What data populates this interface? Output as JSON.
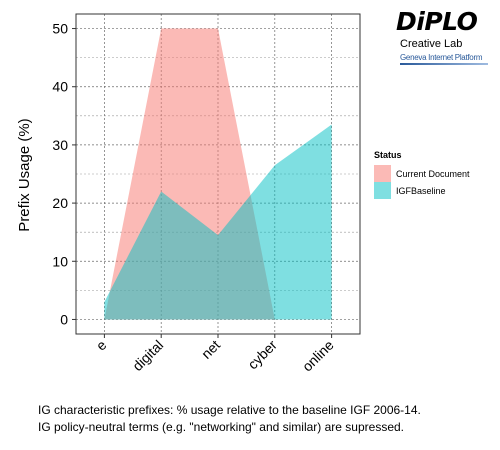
{
  "logo": {
    "brand": "DiPLO",
    "line1": "Creative Lab",
    "line2": "Geneva Internet Platform"
  },
  "caption": {
    "line1": "IG characteristic prefixes: % usage relative to the baseline IGF 2006-14.",
    "line2": "IG policy-neutral terms (e.g. \"networking\" and similar) are supressed."
  },
  "colors": {
    "current_document": "#f8766d",
    "igf_baseline": "#00bfc4",
    "overlap": "#b3a09e"
  },
  "chart_data": {
    "type": "area",
    "categories": [
      "e",
      "digital",
      "net",
      "cyber",
      "online"
    ],
    "ylabel": "Prefix Usage (%)",
    "xlabel": "",
    "ylim": [
      -2.5,
      52.5
    ],
    "yticks": [
      0,
      10,
      20,
      30,
      40,
      50
    ],
    "grid": true,
    "legend": {
      "title": "Status",
      "placement": "right"
    },
    "series": [
      {
        "name": "Current Document",
        "values": [
          0,
          50,
          50,
          0,
          0
        ]
      },
      {
        "name": "IGFBaseline",
        "values": [
          3,
          22,
          14.5,
          26.5,
          33.5
        ]
      }
    ]
  }
}
